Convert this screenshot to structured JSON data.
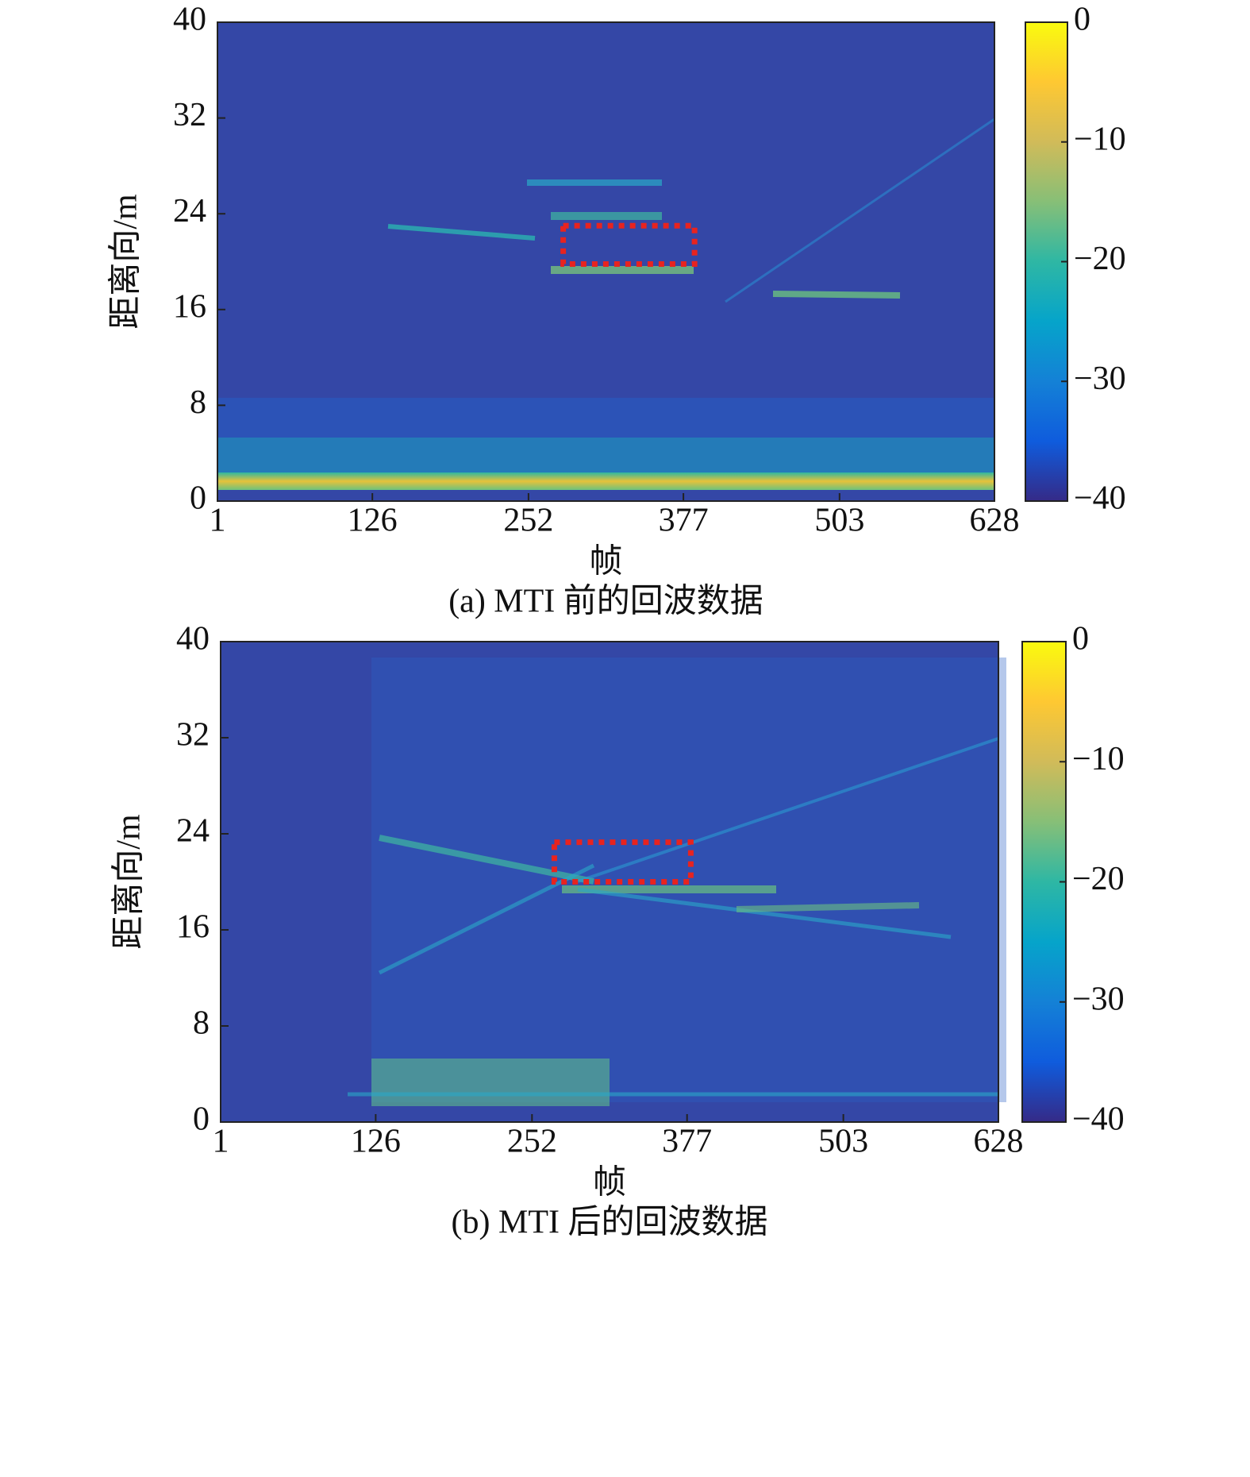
{
  "chart_data": [
    {
      "type": "heatmap",
      "title": "(a) MTI 前的回波数据",
      "xlabel": "帧",
      "ylabel": "距离向/m",
      "xlim": [
        1,
        628
      ],
      "xticks": [
        1,
        126,
        252,
        377,
        503,
        628
      ],
      "ylim": [
        0,
        40
      ],
      "yticks": [
        0,
        8,
        16,
        24,
        32,
        40
      ],
      "clim": [
        -40,
        0
      ],
      "cticks": [
        0,
        {
          "value": -10,
          "label": "−10"
        },
        {
          "value": -20,
          "label": "−20"
        },
        {
          "value": -30,
          "label": "−30"
        },
        {
          "value": -40,
          "label": "−40"
        }
      ],
      "colormap": "parula",
      "box": {
        "x": [
          280,
          386
        ],
        "y": [
          19.8,
          23
        ],
        "color": "#e8231f"
      }
    },
    {
      "type": "heatmap",
      "title": "(b) MTI 后的回波数据",
      "xlabel": "帧",
      "ylabel": "距离向/m",
      "xlim": [
        1,
        628
      ],
      "xticks": [
        1,
        126,
        252,
        377,
        503,
        628
      ],
      "ylim": [
        0,
        40
      ],
      "yticks": [
        0,
        8,
        16,
        24,
        32,
        40
      ],
      "clim": [
        -40,
        0
      ],
      "cticks": [
        0,
        {
          "value": -10,
          "label": "−10"
        },
        {
          "value": -20,
          "label": "−20"
        },
        {
          "value": -30,
          "label": "−30"
        },
        {
          "value": -40,
          "label": "−40"
        }
      ],
      "colormap": "parula",
      "box": {
        "x": [
          270,
          380
        ],
        "y": [
          20,
          23.3
        ],
        "color": "#e8231f"
      }
    }
  ]
}
